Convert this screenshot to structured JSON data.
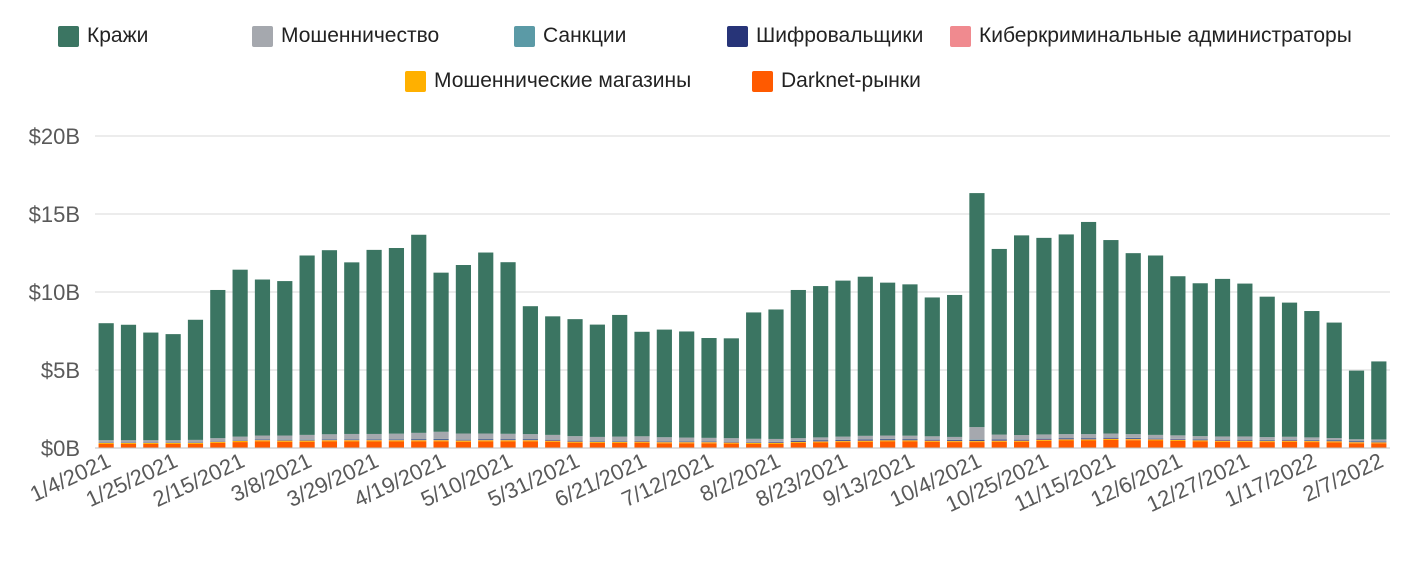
{
  "chart_data": {
    "type": "bar",
    "stacked": true,
    "grid": true,
    "legend_position": "top",
    "y_ticks": [
      "$0B",
      "$5B",
      "$10B",
      "$15B",
      "$20B"
    ],
    "ylim": [
      0,
      20
    ],
    "x_tick_labels": [
      "1/4/2021",
      "1/25/2021",
      "2/15/2021",
      "3/8/2021",
      "3/29/2021",
      "4/19/2021",
      "5/10/2021",
      "5/31/2021",
      "6/21/2021",
      "7/12/2021",
      "8/2/2021",
      "8/23/2021",
      "9/13/2021",
      "10/4/2021",
      "10/25/2021",
      "11/15/2021",
      "12/6/2021",
      "12/27/2021",
      "1/17/2022",
      "2/7/2022"
    ],
    "categories": [
      "1/4/2021",
      "1/11/2021",
      "1/18/2021",
      "1/25/2021",
      "2/1/2021",
      "2/8/2021",
      "2/15/2021",
      "2/22/2021",
      "3/1/2021",
      "3/8/2021",
      "3/15/2021",
      "3/22/2021",
      "3/29/2021",
      "4/5/2021",
      "4/12/2021",
      "4/19/2021",
      "4/26/2021",
      "5/3/2021",
      "5/10/2021",
      "5/17/2021",
      "5/24/2021",
      "5/31/2021",
      "6/7/2021",
      "6/14/2021",
      "6/21/2021",
      "6/28/2021",
      "7/5/2021",
      "7/12/2021",
      "7/19/2021",
      "7/26/2021",
      "8/2/2021",
      "8/9/2021",
      "8/16/2021",
      "8/23/2021",
      "8/30/2021",
      "9/6/2021",
      "9/13/2021",
      "9/20/2021",
      "9/27/2021",
      "10/4/2021",
      "10/11/2021",
      "10/18/2021",
      "10/25/2021",
      "11/1/2021",
      "11/8/2021",
      "11/15/2021",
      "11/22/2021",
      "11/29/2021",
      "12/6/2021",
      "12/13/2021",
      "12/20/2021",
      "12/27/2021",
      "1/3/2022",
      "1/10/2022",
      "1/17/2022",
      "1/24/2022",
      "1/31/2022",
      "2/7/2022"
    ],
    "series": [
      {
        "name": "Darknet-рынки",
        "color": "#ff5a00",
        "values": [
          0.26,
          0.26,
          0.26,
          0.26,
          0.26,
          0.33,
          0.38,
          0.42,
          0.4,
          0.4,
          0.42,
          0.42,
          0.42,
          0.42,
          0.42,
          0.42,
          0.4,
          0.42,
          0.42,
          0.42,
          0.4,
          0.34,
          0.32,
          0.32,
          0.34,
          0.3,
          0.3,
          0.3,
          0.28,
          0.26,
          0.26,
          0.32,
          0.35,
          0.38,
          0.4,
          0.42,
          0.42,
          0.4,
          0.38,
          0.38,
          0.4,
          0.4,
          0.46,
          0.48,
          0.48,
          0.52,
          0.5,
          0.48,
          0.45,
          0.42,
          0.4,
          0.4,
          0.38,
          0.4,
          0.38,
          0.36,
          0.3,
          0.3
        ]
      },
      {
        "name": "Мошеннические магазины",
        "color": "#ffb000",
        "values": [
          0.06,
          0.06,
          0.06,
          0.06,
          0.06,
          0.06,
          0.07,
          0.07,
          0.07,
          0.07,
          0.07,
          0.07,
          0.07,
          0.07,
          0.07,
          0.07,
          0.07,
          0.07,
          0.07,
          0.07,
          0.06,
          0.06,
          0.06,
          0.06,
          0.06,
          0.06,
          0.06,
          0.06,
          0.06,
          0.06,
          0.06,
          0.06,
          0.06,
          0.06,
          0.06,
          0.06,
          0.06,
          0.06,
          0.06,
          0.06,
          0.06,
          0.06,
          0.06,
          0.06,
          0.06,
          0.06,
          0.06,
          0.06,
          0.06,
          0.06,
          0.06,
          0.06,
          0.06,
          0.06,
          0.06,
          0.06,
          0.06,
          0.05
        ]
      },
      {
        "name": "Киберкриминальные администраторы",
        "color": "#f08a8f",
        "values": [
          0.02,
          0.02,
          0.02,
          0.02,
          0.02,
          0.02,
          0.02,
          0.02,
          0.02,
          0.02,
          0.02,
          0.02,
          0.02,
          0.02,
          0.02,
          0.02,
          0.02,
          0.02,
          0.02,
          0.02,
          0.02,
          0.02,
          0.02,
          0.02,
          0.02,
          0.02,
          0.02,
          0.02,
          0.02,
          0.02,
          0.02,
          0.02,
          0.02,
          0.02,
          0.02,
          0.02,
          0.02,
          0.02,
          0.02,
          0.02,
          0.02,
          0.02,
          0.02,
          0.02,
          0.02,
          0.02,
          0.02,
          0.02,
          0.02,
          0.02,
          0.02,
          0.02,
          0.02,
          0.02,
          0.02,
          0.02,
          0.02,
          0.02
        ]
      },
      {
        "name": "Шифровальщики",
        "color": "#273478",
        "values": [
          0.02,
          0.02,
          0.02,
          0.02,
          0.02,
          0.02,
          0.02,
          0.03,
          0.03,
          0.03,
          0.03,
          0.03,
          0.03,
          0.03,
          0.04,
          0.05,
          0.04,
          0.04,
          0.04,
          0.04,
          0.04,
          0.04,
          0.03,
          0.03,
          0.03,
          0.03,
          0.03,
          0.03,
          0.03,
          0.03,
          0.04,
          0.05,
          0.05,
          0.05,
          0.06,
          0.06,
          0.05,
          0.05,
          0.05,
          0.06,
          0.06,
          0.05,
          0.05,
          0.05,
          0.05,
          0.05,
          0.05,
          0.04,
          0.04,
          0.04,
          0.04,
          0.04,
          0.04,
          0.04,
          0.04,
          0.04,
          0.04,
          0.04
        ]
      },
      {
        "name": "Санкции",
        "color": "#5b9aa6",
        "values": [
          0.02,
          0.02,
          0.02,
          0.02,
          0.02,
          0.02,
          0.02,
          0.02,
          0.02,
          0.02,
          0.02,
          0.02,
          0.02,
          0.02,
          0.02,
          0.02,
          0.02,
          0.02,
          0.02,
          0.02,
          0.02,
          0.02,
          0.02,
          0.02,
          0.02,
          0.02,
          0.02,
          0.02,
          0.02,
          0.02,
          0.02,
          0.02,
          0.02,
          0.02,
          0.02,
          0.02,
          0.02,
          0.02,
          0.02,
          0.02,
          0.02,
          0.02,
          0.02,
          0.02,
          0.02,
          0.02,
          0.02,
          0.02,
          0.02,
          0.02,
          0.02,
          0.02,
          0.02,
          0.02,
          0.02,
          0.02,
          0.02,
          0.02
        ]
      },
      {
        "name": "Мошенничество",
        "color": "#a5a8ae",
        "values": [
          0.12,
          0.12,
          0.12,
          0.12,
          0.14,
          0.18,
          0.22,
          0.24,
          0.26,
          0.3,
          0.32,
          0.34,
          0.34,
          0.36,
          0.4,
          0.46,
          0.38,
          0.36,
          0.34,
          0.32,
          0.3,
          0.28,
          0.26,
          0.28,
          0.28,
          0.26,
          0.24,
          0.22,
          0.22,
          0.2,
          0.18,
          0.16,
          0.18,
          0.2,
          0.22,
          0.22,
          0.22,
          0.2,
          0.18,
          0.8,
          0.3,
          0.28,
          0.26,
          0.26,
          0.26,
          0.26,
          0.24,
          0.22,
          0.22,
          0.2,
          0.2,
          0.2,
          0.18,
          0.18,
          0.16,
          0.14,
          0.12,
          0.12
        ]
      },
      {
        "name": "Кражи",
        "color": "#3b7562",
        "values": [
          7.5,
          7.4,
          6.9,
          6.8,
          7.7,
          9.5,
          10.7,
          10.0,
          9.9,
          11.5,
          11.8,
          11.0,
          11.8,
          11.9,
          12.7,
          10.2,
          10.8,
          11.6,
          11.0,
          8.2,
          7.6,
          7.5,
          7.2,
          7.8,
          6.7,
          6.9,
          6.8,
          6.4,
          6.4,
          8.1,
          8.3,
          9.5,
          9.7,
          10.0,
          10.2,
          9.8,
          9.7,
          8.9,
          9.1,
          15.0,
          11.9,
          12.8,
          12.6,
          12.8,
          13.6,
          12.4,
          11.6,
          11.5,
          10.2,
          9.8,
          10.1,
          9.8,
          9.0,
          8.6,
          8.1,
          7.4,
          4.4,
          5.0
        ]
      }
    ]
  }
}
